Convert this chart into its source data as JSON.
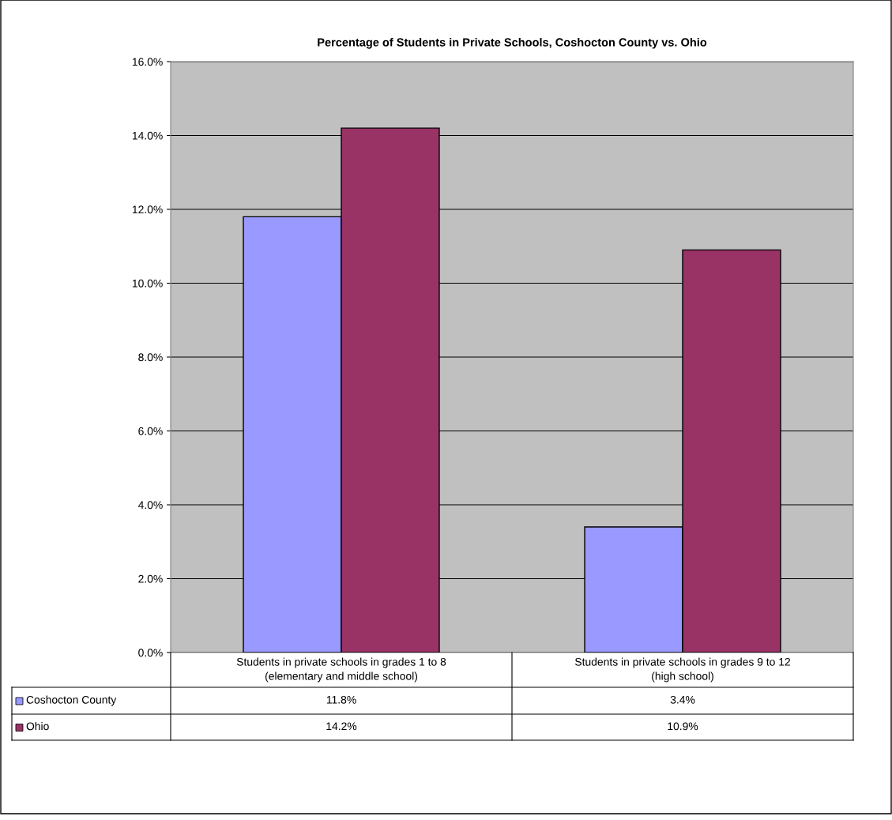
{
  "chart_data": {
    "type": "bar",
    "title": "Percentage of Students in Private Schools, Coshocton County vs. Ohio",
    "categories": [
      "Students in private schools in grades 1 to 8\n(elementary and middle school)",
      "Students in private schools in grades 9 to 12\n(high school)"
    ],
    "series": [
      {
        "name": "Coshocton County",
        "color": "#9999ff",
        "values": [
          11.8,
          3.4
        ],
        "value_labels": [
          "11.8%",
          "3.4%"
        ]
      },
      {
        "name": "Ohio",
        "color": "#993366",
        "values": [
          14.2,
          10.9
        ],
        "value_labels": [
          "14.2%",
          "10.9%"
        ]
      }
    ],
    "ylim": [
      0,
      16
    ],
    "yticks": [
      {
        "value": 0,
        "label": "0.0%"
      },
      {
        "value": 2,
        "label": "2.0%"
      },
      {
        "value": 4,
        "label": "4.0%"
      },
      {
        "value": 6,
        "label": "6.0%"
      },
      {
        "value": 8,
        "label": "8.0%"
      },
      {
        "value": 10,
        "label": "10.0%"
      },
      {
        "value": 12,
        "label": "12.0%"
      },
      {
        "value": 14,
        "label": "14.0%"
      },
      {
        "value": 16,
        "label": "16.0%"
      }
    ],
    "grid": "y",
    "legend": "bottom"
  }
}
